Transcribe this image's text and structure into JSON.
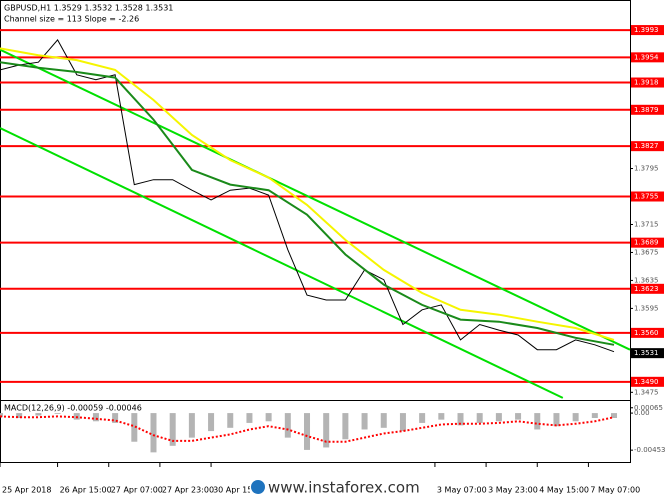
{
  "chart_data": [
    {
      "type": "line",
      "title": "GBPUSD,H1  1.3529 1.3532 1.3528 1.3531",
      "subtitle": "Channel size = 113 Slope = -2.26",
      "watermark": "www.instaforex.com",
      "xlim": [
        0,
        197
      ],
      "xticks": [
        {
          "value": 0,
          "label": "25 Apr 2018"
        },
        {
          "value": 18,
          "label": "26 Apr 15:00"
        },
        {
          "value": 34,
          "label": "27 Apr 07:00"
        },
        {
          "value": 50,
          "label": "27 Apr 23:00"
        },
        {
          "value": 66,
          "label": "30 Apr 15:00"
        },
        {
          "value": 136,
          "label": "3 May 07:00"
        },
        {
          "value": 152,
          "label": "3 May 23:00"
        },
        {
          "value": 168,
          "label": "4 May 15:00"
        },
        {
          "value": 184,
          "label": "7 May 07:00"
        }
      ],
      "ylim": [
        1.3464,
        1.4036
      ],
      "yticks": [
        1.3795,
        1.3715,
        1.3675,
        1.3635,
        1.3595,
        1.3475
      ],
      "levels": [
        1.3993,
        1.3954,
        1.3918,
        1.3879,
        1.3827,
        1.3755,
        1.3689,
        1.3623,
        {
          "value": 1.356,
          "label": "1.3560"
        },
        {
          "value": 1.349,
          "label": "1.3490"
        }
      ],
      "level_color": "#ff0000",
      "last_price": 1.3531,
      "series": [
        {
          "color": "#00e000",
          "x": [
            0,
            197
          ],
          "values": [
            1.3965,
            1.3536
          ]
        },
        {
          "color": "#00e000",
          "x": [
            0,
            176
          ],
          "values": [
            1.3853,
            1.3467
          ]
        },
        {
          "color": "#000000",
          "x": [
            0,
            6,
            12,
            18,
            24,
            30,
            36,
            42,
            48,
            54,
            60,
            66,
            72,
            78,
            84,
            90,
            96,
            102,
            108,
            114,
            120,
            126,
            132,
            138,
            144,
            150,
            156,
            162,
            168,
            174,
            180,
            186,
            192
          ],
          "values": [
            1.3936,
            1.3943,
            1.3947,
            1.3979,
            1.3929,
            1.3922,
            1.3929,
            1.3772,
            1.3779,
            1.3779,
            1.3764,
            1.375,
            1.3764,
            1.3767,
            1.3757,
            1.3679,
            1.3614,
            1.3607,
            1.3607,
            1.365,
            1.3636,
            1.3572,
            1.3593,
            1.36,
            1.355,
            1.3572,
            1.3564,
            1.3557,
            1.3536,
            1.3536,
            1.355,
            1.3543,
            1.3533
          ]
        },
        {
          "color": "#f5f500",
          "x": [
            0,
            12,
            24,
            36,
            48,
            60,
            72,
            84,
            96,
            108,
            120,
            132,
            144,
            156,
            168,
            180,
            192
          ],
          "values": [
            1.3967,
            1.3957,
            1.395,
            1.3936,
            1.3893,
            1.3843,
            1.3807,
            1.3782,
            1.3743,
            1.3693,
            1.365,
            1.3617,
            1.3593,
            1.3586,
            1.3576,
            1.3567,
            1.355
          ]
        },
        {
          "color": "#1a8a1a",
          "x": [
            0,
            12,
            24,
            36,
            48,
            60,
            72,
            84,
            96,
            108,
            120,
            132,
            144,
            156,
            168,
            180,
            192
          ],
          "values": [
            1.3947,
            1.3939,
            1.3933,
            1.3925,
            1.3865,
            1.3793,
            1.3772,
            1.3764,
            1.3729,
            1.3672,
            1.3629,
            1.36,
            1.3579,
            1.3576,
            1.3567,
            1.3553,
            1.3543
          ]
        }
      ]
    },
    {
      "type": "bar",
      "title": "MACD(12,26,9) -0.00059 -0.00046",
      "xlim": [
        0,
        197
      ],
      "ylim": [
        -0.0061,
        0.0016
      ],
      "yticks": [
        0.00065,
        {
          "value": 0,
          "label": "0.00"
        },
        -0.00453
      ],
      "x": [
        0,
        6,
        12,
        18,
        24,
        30,
        36,
        42,
        48,
        54,
        60,
        66,
        72,
        78,
        84,
        90,
        96,
        102,
        108,
        114,
        120,
        126,
        132,
        138,
        144,
        150,
        156,
        162,
        168,
        174,
        180,
        186,
        192
      ],
      "color": "#b4b4b4",
      "values": [
        -0.0005,
        -0.0006,
        -0.0003,
        -0.0001,
        -0.0008,
        -0.001,
        -0.0012,
        -0.0035,
        -0.0048,
        -0.004,
        -0.003,
        -0.0022,
        -0.0018,
        -0.0012,
        -0.001,
        -0.003,
        -0.0045,
        -0.0042,
        -0.0032,
        -0.002,
        -0.0018,
        -0.0022,
        -0.0012,
        -0.0008,
        -0.0015,
        -0.0012,
        -0.001,
        -0.0008,
        -0.002,
        -0.0016,
        -0.001,
        -0.0006,
        -0.0006
      ],
      "signal": {
        "color": "#ff0000",
        "values": [
          -0.0004,
          -0.0005,
          -0.0005,
          -0.0004,
          -0.0005,
          -0.0007,
          -0.0009,
          -0.0016,
          -0.0027,
          -0.0034,
          -0.0034,
          -0.003,
          -0.0026,
          -0.002,
          -0.0016,
          -0.002,
          -0.0028,
          -0.0035,
          -0.0035,
          -0.003,
          -0.0025,
          -0.0022,
          -0.0018,
          -0.0014,
          -0.0013,
          -0.0013,
          -0.0012,
          -0.001,
          -0.0013,
          -0.0015,
          -0.0013,
          -0.001,
          -0.0005
        ]
      }
    }
  ]
}
